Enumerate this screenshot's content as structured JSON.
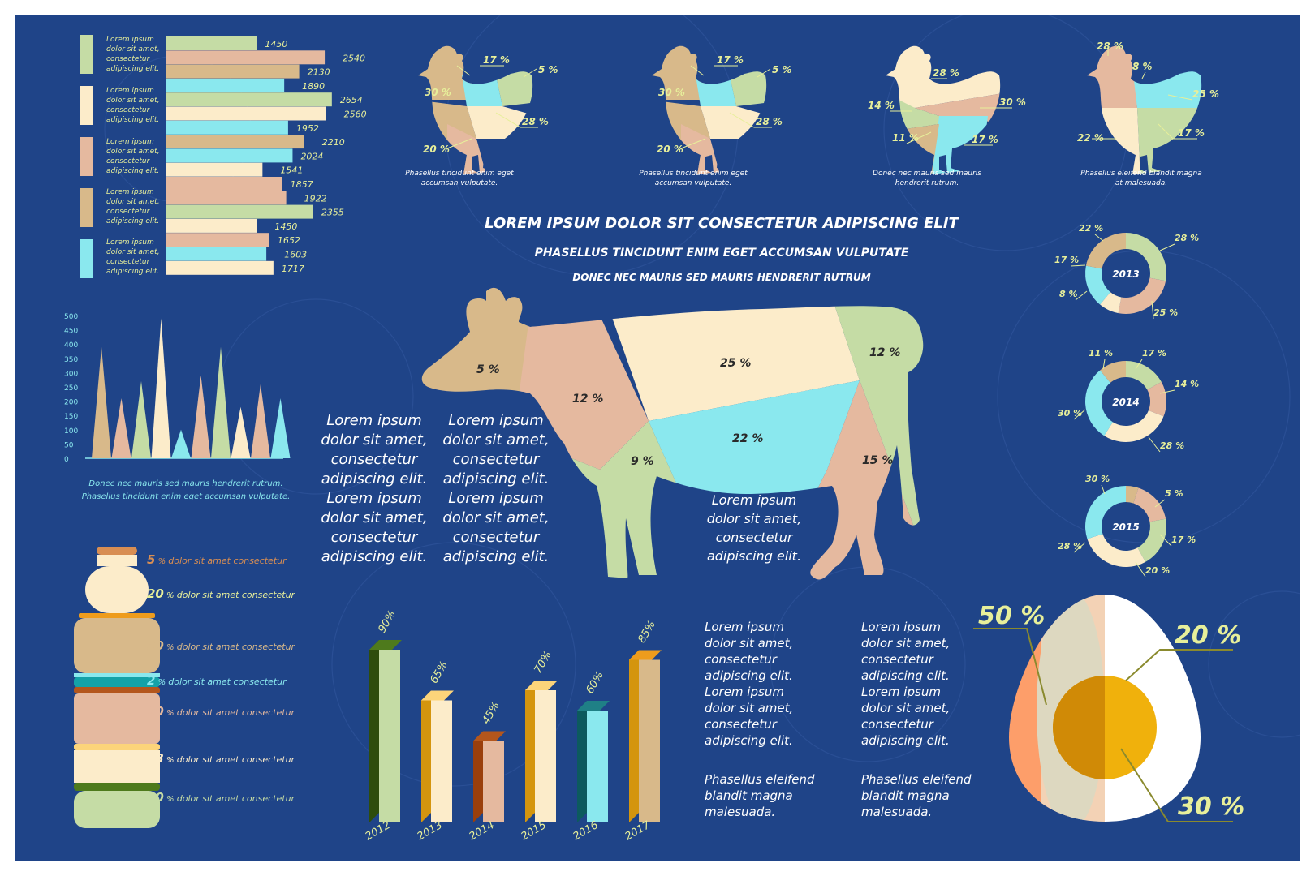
{
  "colors": {
    "background": "#1f4488",
    "green": "#c5dca5",
    "peach": "#e5b99f",
    "tan": "#d8b98a",
    "cream": "#fcecca",
    "cyan": "#8ae8ee",
    "label": "#e7ef9a",
    "white": "#ffffff"
  },
  "header": {
    "title": "LOREM IPSUM DOLOR SIT CONSECTETUR ADIPISCING ELIT",
    "subtitle": "PHASELLUS TINCIDUNT ENIM EGET ACCUMSAN VULPUTATE",
    "subtitle2": "DONEC NEC MAURIS SED  MAURIS HENDRERIT RUTRUM"
  },
  "hbar": {
    "legend": [
      {
        "color": "green",
        "text": "Lorem ipsum dolor sit amet, consectetur adipiscing elit."
      },
      {
        "color": "cream",
        "text": "Lorem ipsum dolor sit amet, consectetur adipiscing elit."
      },
      {
        "color": "peach",
        "text": "Lorem ipsum dolor sit amet, consectetur adipiscing elit."
      },
      {
        "color": "tan",
        "text": "Lorem ipsum dolor sit amet, consectetur adipiscing elit."
      },
      {
        "color": "cyan",
        "text": "Lorem ipsum dolor sit amet, consectetur adipiscing elit."
      }
    ]
  },
  "peaks": {
    "caption1": "Donec nec mauris sed mauris hendrerit rutrum.",
    "caption2": "Phasellus tincidunt enim eget accumsan vulputate."
  },
  "chickens": [
    {
      "caption": "Phasellus tincidunt enim eget accumsan vulputate."
    },
    {
      "caption": "Phasellus tincidunt enim eget accumsan vulputate."
    },
    {
      "caption": "Donec nec mauris sed mauris hendrerit rutrum."
    },
    {
      "caption": "Phasellus eleifend blandit magna at malesuada."
    }
  ],
  "bottle": {
    "items": [
      {
        "pct": "5",
        "text": "dolor sit amet consectetur",
        "color": "#d88e53"
      },
      {
        "pct": "20",
        "text": "dolor sit amet consectetur",
        "color": "#e7ef9a"
      },
      {
        "pct": "30",
        "text": "dolor sit amet consectetur",
        "color": "#d8b98a"
      },
      {
        "pct": "2",
        "text": "dolor sit amet consectetur",
        "color": "#8ae8ee"
      },
      {
        "pct": "20",
        "text": "dolor sit amet consectetur",
        "color": "#e5b99f"
      },
      {
        "pct": "13",
        "text": "dolor sit amet consectetur",
        "color": "#fcecca"
      },
      {
        "pct": "10",
        "text": "dolor sit amet consectetur",
        "color": "#c5dca5"
      }
    ]
  },
  "lorem_blocks": {
    "block_a": "Lorem ipsum dolor sit amet, consectetur adipiscing elit. Lorem ipsum dolor sit amet, consectetur adipiscing elit.",
    "block_b": "Lorem ipsum dolor sit amet, consectetur adipiscing elit. Lorem ipsum dolor sit amet, consectetur adipiscing elit.",
    "block_cow": "Lorem ipsum dolor sit amet, consectetur adipiscing elit.",
    "block_c": "Lorem ipsum dolor sit amet, consectetur adipiscing elit. Lorem ipsum dolor sit amet, consectetur adipiscing elit.",
    "block_d": "Lorem ipsum dolor sit amet, consectetur adipiscing elit. Lorem ipsum dolor sit amet, consectetur adipiscing elit.",
    "footer_c": "Phasellus eleifend blandit magna malesuada.",
    "footer_d": "Phasellus eleifend blandit magna malesuada."
  },
  "chart_data": [
    {
      "type": "bar",
      "orientation": "horizontal",
      "values": [
        1450,
        2540,
        2130,
        1890,
        2654,
        2560,
        1952,
        2210,
        2024,
        1541,
        1857,
        1922,
        2355,
        1450,
        1652,
        1603,
        1717
      ],
      "colors": [
        "green",
        "peach",
        "tan",
        "cyan",
        "green",
        "cream",
        "cyan",
        "tan",
        "cyan",
        "cream",
        "peach",
        "peach",
        "green",
        "cream",
        "peach",
        "cyan",
        "cream"
      ]
    },
    {
      "type": "bar",
      "style": "peaks",
      "yticks": [
        "0",
        "50",
        "100",
        "150",
        "200",
        "250",
        "300",
        "350",
        "400",
        "450",
        "500"
      ],
      "ylim": [
        0,
        500
      ],
      "values": [
        390,
        210,
        270,
        490,
        100,
        290,
        390,
        180,
        260,
        210
      ],
      "colors": [
        "tan",
        "peach",
        "green",
        "cream",
        "cyan",
        "peach",
        "green",
        "cream",
        "peach",
        "cyan"
      ]
    },
    {
      "type": "pie",
      "name": "chicken-1",
      "slices": [
        {
          "label": "17 %",
          "value": 17,
          "color": "cyan"
        },
        {
          "label": "5 %",
          "value": 5,
          "color": "green"
        },
        {
          "label": "28 %",
          "value": 28,
          "color": "cream"
        },
        {
          "label": "20 %",
          "value": 20,
          "color": "peach"
        },
        {
          "label": "30 %",
          "value": 30,
          "color": "tan"
        }
      ]
    },
    {
      "type": "pie",
      "name": "chicken-2",
      "slices": [
        {
          "label": "17 %",
          "value": 17,
          "color": "cyan"
        },
        {
          "label": "5 %",
          "value": 5,
          "color": "green"
        },
        {
          "label": "28 %",
          "value": 28,
          "color": "cream"
        },
        {
          "label": "20 %",
          "value": 20,
          "color": "peach"
        },
        {
          "label": "30 %",
          "value": 30,
          "color": "tan"
        }
      ]
    },
    {
      "type": "pie",
      "name": "chicken-3",
      "slices": [
        {
          "label": "28 %",
          "value": 28,
          "color": "cream"
        },
        {
          "label": "30 %",
          "value": 30,
          "color": "peach"
        },
        {
          "label": "17 %",
          "value": 17,
          "color": "cyan"
        },
        {
          "label": "11 %",
          "value": 11,
          "color": "tan"
        },
        {
          "label": "14 %",
          "value": 14,
          "color": "green"
        }
      ]
    },
    {
      "type": "pie",
      "name": "chicken-4",
      "slices": [
        {
          "label": "28 %",
          "value": 28,
          "color": "peach"
        },
        {
          "label": "8 %",
          "value": 8,
          "color": "cyan"
        },
        {
          "label": "25 %",
          "value": 25,
          "color": "cyan"
        },
        {
          "label": "17 %",
          "value": 17,
          "color": "green"
        },
        {
          "label": "22 %",
          "value": 22,
          "color": "cream"
        }
      ]
    },
    {
      "type": "pie",
      "name": "cow",
      "slices": [
        {
          "label": "5 %",
          "value": 5,
          "color": "tan"
        },
        {
          "label": "12 %",
          "value": 12,
          "color": "peach"
        },
        {
          "label": "25 %",
          "value": 25,
          "color": "cream"
        },
        {
          "label": "12 %",
          "value": 12,
          "color": "green"
        },
        {
          "label": "22 %",
          "value": 22,
          "color": "cyan"
        },
        {
          "label": "9 %",
          "value": 9,
          "color": "green"
        },
        {
          "label": "15 %",
          "value": 15,
          "color": "peach"
        }
      ]
    },
    {
      "type": "pie",
      "style": "donut",
      "center": "2013",
      "slices": [
        {
          "label": "28 %",
          "value": 28,
          "color": "green"
        },
        {
          "label": "25 %",
          "value": 25,
          "color": "peach"
        },
        {
          "label": "8 %",
          "value": 8,
          "color": "cream"
        },
        {
          "label": "17 %",
          "value": 17,
          "color": "cyan"
        },
        {
          "label": "22 %",
          "value": 22,
          "color": "tan"
        }
      ]
    },
    {
      "type": "pie",
      "style": "donut",
      "center": "2014",
      "slices": [
        {
          "label": "17 %",
          "value": 17,
          "color": "green"
        },
        {
          "label": "14 %",
          "value": 14,
          "color": "peach"
        },
        {
          "label": "28 %",
          "value": 28,
          "color": "cream"
        },
        {
          "label": "30 %",
          "value": 30,
          "color": "cyan"
        },
        {
          "label": "11 %",
          "value": 11,
          "color": "tan"
        }
      ]
    },
    {
      "type": "pie",
      "style": "donut",
      "center": "2015",
      "slices": [
        {
          "label": "5 %",
          "value": 5,
          "color": "tan"
        },
        {
          "label": "17 %",
          "value": 17,
          "color": "peach"
        },
        {
          "label": "20 %",
          "value": 20,
          "color": "green"
        },
        {
          "label": "28 %",
          "value": 28,
          "color": "cream"
        },
        {
          "label": "30 %",
          "value": 30,
          "color": "cyan"
        }
      ]
    },
    {
      "type": "bar",
      "style": "3d",
      "categories": [
        "2012",
        "2013",
        "2014",
        "2015",
        "2016",
        "2017"
      ],
      "values": [
        90,
        65,
        45,
        70,
        60,
        85
      ],
      "labels": [
        "90%",
        "65%",
        "45%",
        "70%",
        "60%",
        "85%"
      ],
      "ylim": [
        0,
        100
      ],
      "colors": [
        "#c5dca5",
        "#fcecca",
        "#e5b99f",
        "#fcecca",
        "#8ae8ee",
        "#d8b98a"
      ],
      "side_colors": [
        "#2e4d0c",
        "#d4950e",
        "#9a3f0c",
        "#d4950e",
        "#0c5a5e",
        "#d4950e"
      ],
      "top_colors": [
        "#4e7a1c",
        "#fcd47a",
        "#b4561c",
        "#fcd47a",
        "#1f8086",
        "#ee9c1c"
      ]
    },
    {
      "type": "pie",
      "name": "egg",
      "slices": [
        {
          "label": "50 %",
          "value": 50,
          "color": "#fd9e6a"
        },
        {
          "label": "20 %",
          "value": 20,
          "color": "#ffffff"
        },
        {
          "label": "30 %",
          "value": 30,
          "color": "#f0b10c"
        }
      ]
    }
  ]
}
